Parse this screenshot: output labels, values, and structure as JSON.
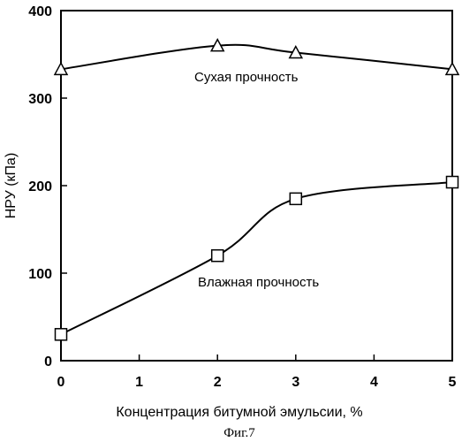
{
  "chart_data": {
    "type": "line",
    "xlabel": "Концентрация битумной эмульсии, %",
    "ylabel": "НРУ (кПа)",
    "caption": "Фиг.7",
    "xlim": [
      0,
      5
    ],
    "ylim": [
      0,
      400
    ],
    "x_ticks": [
      0,
      1,
      2,
      3,
      4,
      5
    ],
    "y_ticks": [
      0,
      100,
      200,
      300,
      400
    ],
    "grid": false,
    "series": [
      {
        "name": "Сухая прочность",
        "marker": "triangle",
        "x": [
          0,
          2,
          3,
          5
        ],
        "y": [
          333,
          360,
          352,
          333
        ]
      },
      {
        "name": "Влажная прочность",
        "marker": "square",
        "x": [
          0,
          2,
          3,
          5
        ],
        "y": [
          30,
          120,
          185,
          204
        ]
      }
    ]
  }
}
